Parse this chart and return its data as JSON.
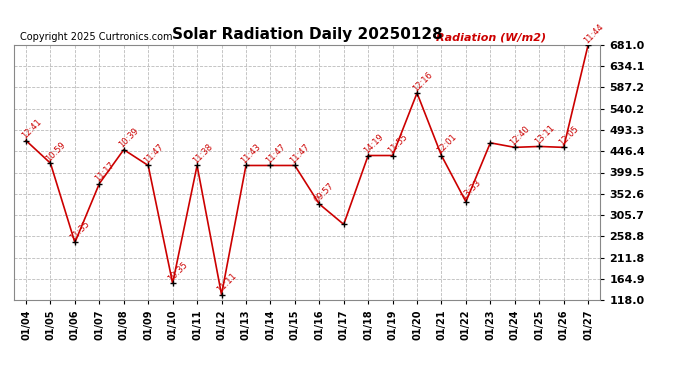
{
  "title": "Solar Radiation Daily 20250128",
  "copyright": "Copyright 2025 Curtronics.com",
  "ylabel_text": "Radiation (W/m2)",
  "dates": [
    "01/04",
    "01/05",
    "01/06",
    "01/07",
    "01/08",
    "01/09",
    "01/10",
    "01/11",
    "01/12",
    "01/13",
    "01/14",
    "01/15",
    "01/16",
    "01/17",
    "01/18",
    "01/19",
    "01/20",
    "01/21",
    "01/22",
    "01/23",
    "01/24",
    "01/25",
    "01/26",
    "01/27"
  ],
  "values": [
    470,
    420,
    245,
    375,
    450,
    415,
    155,
    415,
    130,
    415,
    415,
    415,
    330,
    285,
    437,
    437,
    575,
    437,
    335,
    465,
    455,
    457,
    455,
    681
  ],
  "time_labels": [
    "12:41",
    "10:59",
    "11:35",
    "11:17",
    "10:39",
    "11:47",
    "10:35",
    "11:38",
    "11:11",
    "11:43",
    "11:47",
    "11:47",
    "09:57",
    "",
    "14:19",
    "11:55",
    "12:16",
    "12:01",
    "13:33",
    "",
    "12:40",
    "13:11",
    "12:05",
    "11:44"
  ],
  "ylim": [
    118.0,
    681.0
  ],
  "yticks": [
    118.0,
    164.9,
    211.8,
    258.8,
    305.7,
    352.6,
    399.5,
    446.4,
    493.3,
    540.2,
    587.2,
    634.1,
    681.0
  ],
  "line_color": "#cc0000",
  "marker_color": "#000000",
  "bg_color": "#ffffff",
  "grid_color": "#bbbbbb"
}
